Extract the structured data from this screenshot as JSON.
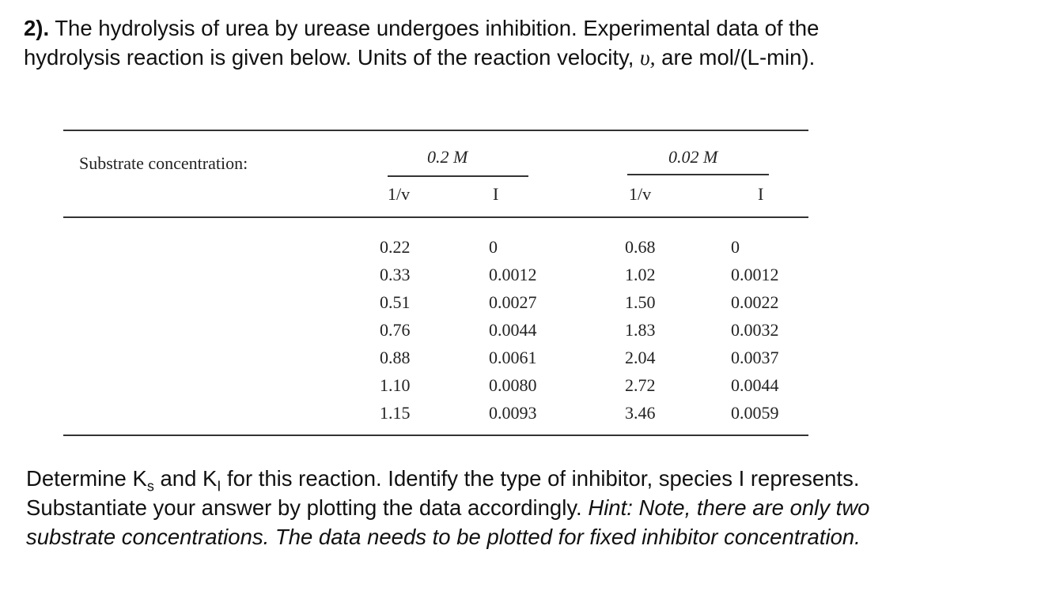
{
  "problem": {
    "number": "2).",
    "line1": "The hydrolysis of urea by urease undergoes inhibition.  Experimental data of the",
    "line2_start": "hydrolysis reaction is given below.  Units of the reaction velocity,",
    "velocity_symbol": "υ,",
    "line2_end": "are mol/(L-min)."
  },
  "table": {
    "label": "Substrate concentration:",
    "groups": [
      "0.2 M",
      "0.02 M"
    ],
    "columns": [
      "1/v",
      "I",
      "1/v",
      "I"
    ],
    "rows": [
      [
        "0.22",
        "0",
        "0.68",
        "0"
      ],
      [
        "0.33",
        "0.0012",
        "1.02",
        "0.0012"
      ],
      [
        "0.51",
        "0.0027",
        "1.50",
        "0.0022"
      ],
      [
        "0.76",
        "0.0044",
        "1.83",
        "0.0032"
      ],
      [
        "0.88",
        "0.0061",
        "2.04",
        "0.0037"
      ],
      [
        "1.10",
        "0.0080",
        "2.72",
        "0.0044"
      ],
      [
        "1.15",
        "0.0093",
        "3.46",
        "0.0059"
      ]
    ]
  },
  "question": {
    "part1": "Determine K",
    "sub_s": "s",
    "part2": "and K",
    "sub_i": "I",
    "part3": "for this reaction.  Identify the type of inhibitor, species I represents.",
    "part4": "Substantiate your answer by plotting the data accordingly.",
    "hint1": "Hint: Note, there are only two",
    "hint2": "substrate concentrations. The data needs to be plotted for fixed inhibitor concentration."
  }
}
